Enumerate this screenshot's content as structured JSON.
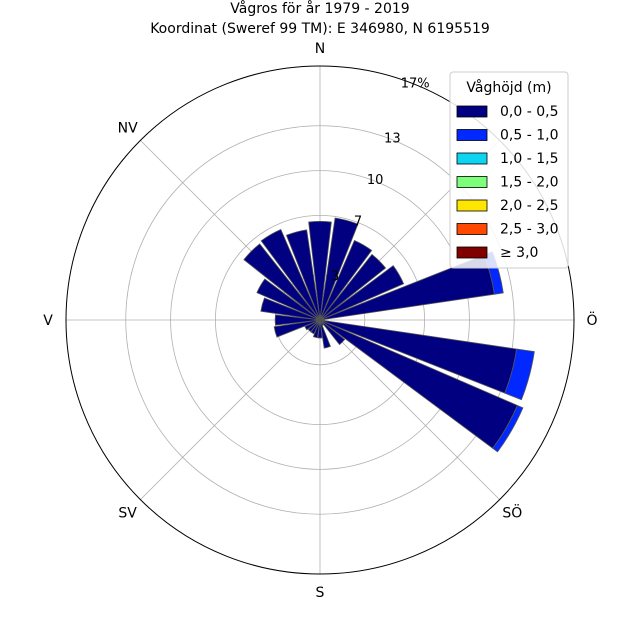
{
  "chart_data": {
    "type": "wind-rose",
    "title": "Vågros för år 1979 - 2019",
    "subtitle": "Koordinat (Sweref 99 TM): E 346980, N 6195519",
    "direction_labels": [
      "N",
      "NV",
      "V",
      "SV",
      "S",
      "SÖ",
      "Ö"
    ],
    "radial_ticks": [
      {
        "value": 3,
        "label": "3"
      },
      {
        "value": 7,
        "label": "7"
      },
      {
        "value": 10,
        "label": "10"
      },
      {
        "value": 13,
        "label": "13"
      },
      {
        "value": 17,
        "label": "17%"
      }
    ],
    "r_max": 17,
    "legend": {
      "title": "Våghöjd (m)",
      "entries": [
        {
          "label": "0,0 - 0,5",
          "color": "#000080"
        },
        {
          "label": "0,5 - 1,0",
          "color": "#0028ff"
        },
        {
          "label": "1,0 - 1,5",
          "color": "#0dd4f0"
        },
        {
          "label": "1,5 - 2,0",
          "color": "#7cff79"
        },
        {
          "label": "2,0 - 2,5",
          "color": "#ffe600"
        },
        {
          "label": "2,5 - 3,0",
          "color": "#ff4800"
        },
        {
          "label": "≥ 3,0",
          "color": "#800000"
        }
      ]
    },
    "sectors_deg": [
      0,
      15,
      30,
      45,
      60,
      75,
      90,
      105,
      120,
      135,
      150,
      165,
      180,
      195,
      210,
      225,
      240,
      255,
      270,
      285,
      300,
      315,
      330,
      345
    ],
    "stacks": [
      [
        6.6,
        0,
        0,
        0,
        0,
        0,
        0
      ],
      [
        6.9,
        0,
        0,
        0,
        0,
        0,
        0
      ],
      [
        5.8,
        0,
        0,
        0,
        0,
        0,
        0
      ],
      [
        5.6,
        0,
        0,
        0,
        0,
        0,
        0
      ],
      [
        6.1,
        0,
        0,
        0,
        0,
        0,
        0
      ],
      [
        11.8,
        0.6,
        0,
        0,
        0,
        0,
        0
      ],
      [
        0.3,
        0,
        0,
        0,
        0,
        0,
        0
      ],
      [
        13.3,
        1.2,
        0,
        0,
        0,
        0,
        0
      ],
      [
        14.4,
        0.4,
        0,
        0,
        0,
        0,
        0
      ],
      [
        2.1,
        0,
        0,
        0,
        0,
        0,
        0
      ],
      [
        0.4,
        0,
        0,
        0,
        0,
        0,
        0
      ],
      [
        1.9,
        0,
        0,
        0,
        0,
        0,
        0
      ],
      [
        1.2,
        0,
        0,
        0,
        0,
        0,
        0
      ],
      [
        1.2,
        0,
        0,
        0,
        0,
        0,
        0
      ],
      [
        1.0,
        0,
        0,
        0,
        0,
        0,
        0
      ],
      [
        1.0,
        0,
        0,
        0,
        0,
        0,
        0
      ],
      [
        1.1,
        0,
        0,
        0,
        0,
        0,
        0
      ],
      [
        3.1,
        0,
        0,
        0,
        0,
        0,
        0
      ],
      [
        3.0,
        0,
        0,
        0,
        0,
        0,
        0
      ],
      [
        4.0,
        0,
        0,
        0,
        0,
        0,
        0
      ],
      [
        4.6,
        0,
        0,
        0,
        0,
        0,
        0
      ],
      [
        6.5,
        0,
        0,
        0,
        0,
        0,
        0
      ],
      [
        6.6,
        0,
        0,
        0,
        0,
        0,
        0
      ],
      [
        6.1,
        0,
        0,
        0,
        0,
        0,
        0
      ]
    ]
  }
}
